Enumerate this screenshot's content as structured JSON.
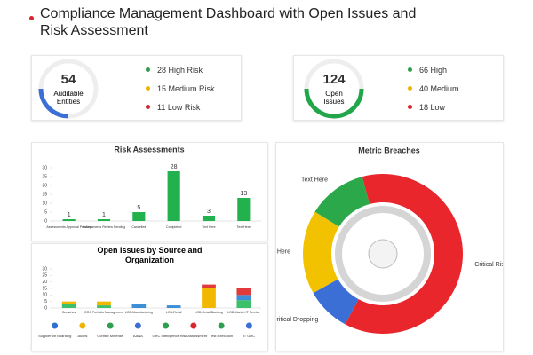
{
  "header": {
    "title": "Compliance Management Dashboard with Open Issues and Risk Assessment"
  },
  "kpis": [
    {
      "value": "54",
      "label": "Auditable Entities",
      "color": "#3b6fd6",
      "items": [
        {
          "text": "28 High Risk",
          "color": "#2e9e4f"
        },
        {
          "text": "15 Medium Risk",
          "color": "#f0b400"
        },
        {
          "text": "11 Low Risk",
          "color": "#d9262c"
        }
      ]
    },
    {
      "value": "124",
      "label": "Open Issues",
      "color": "#22a64a",
      "items": [
        {
          "text": "66 High",
          "color": "#2e9e4f"
        },
        {
          "text": "40 Medium",
          "color": "#f0b400"
        },
        {
          "text": "18 Low",
          "color": "#d9262c"
        }
      ]
    }
  ],
  "chart_data": [
    {
      "type": "bar",
      "title": "Risk Assessments",
      "categories": [
        "Assessments Approval Pending",
        "Assessments Review Pending",
        "Cancelled",
        "Completed",
        "Text Here",
        "Text Here"
      ],
      "values": [
        1,
        1,
        5,
        28,
        3,
        13
      ],
      "color": "#22b14c",
      "ylim": [
        0,
        30
      ],
      "yticks": [
        0,
        5,
        10,
        15,
        20,
        25,
        30
      ]
    },
    {
      "type": "stacked_bar",
      "title": "Open Issues by Source and Organization",
      "categories": [
        "Breaches",
        "GRC Portfolio Management",
        "LOB-Manufacturing",
        "LOB-Retail",
        "LOB-Retail Banking",
        "LOB-Market IT Service"
      ],
      "series": [
        {
          "color": "#3cc06a",
          "values": [
            3,
            2,
            0,
            0,
            0,
            6
          ]
        },
        {
          "color": "#f2b700",
          "values": [
            2,
            3,
            0,
            0,
            15,
            0
          ]
        },
        {
          "color": "#3d8fd8",
          "values": [
            0,
            0,
            3,
            2,
            0,
            4
          ]
        },
        {
          "color": "#e03a3a",
          "values": [
            0,
            0,
            0,
            0,
            3,
            5
          ]
        }
      ],
      "ylim": [
        0,
        30
      ],
      "yticks": [
        0,
        5,
        10,
        15,
        20,
        25,
        30
      ],
      "sources": [
        {
          "label": "Supplier on Boarding",
          "color": "#2e6fd0"
        },
        {
          "label": "Audits",
          "color": "#f0b400"
        },
        {
          "label": "Conflict Minerals",
          "color": "#2e9e4f"
        },
        {
          "label": "AANA",
          "color": "#3b6fd6"
        },
        {
          "label": "GRC Intelligence",
          "color": "#2e9e4f"
        },
        {
          "label": "Risk Assessment",
          "color": "#d9262c"
        },
        {
          "label": "Test Execution",
          "color": "#2e9e4f"
        },
        {
          "label": "IT GRC",
          "color": "#3b6fd6"
        }
      ]
    },
    {
      "type": "donut",
      "title": "Metric Breaches",
      "categories": [
        "Critical Rising",
        "Critical Dropping",
        "Text Here",
        "Text Here"
      ],
      "values": [
        62,
        9,
        17,
        12
      ],
      "colors": [
        "#e8262b",
        "#3b6fd6",
        "#f2c200",
        "#2aa84a"
      ]
    }
  ]
}
